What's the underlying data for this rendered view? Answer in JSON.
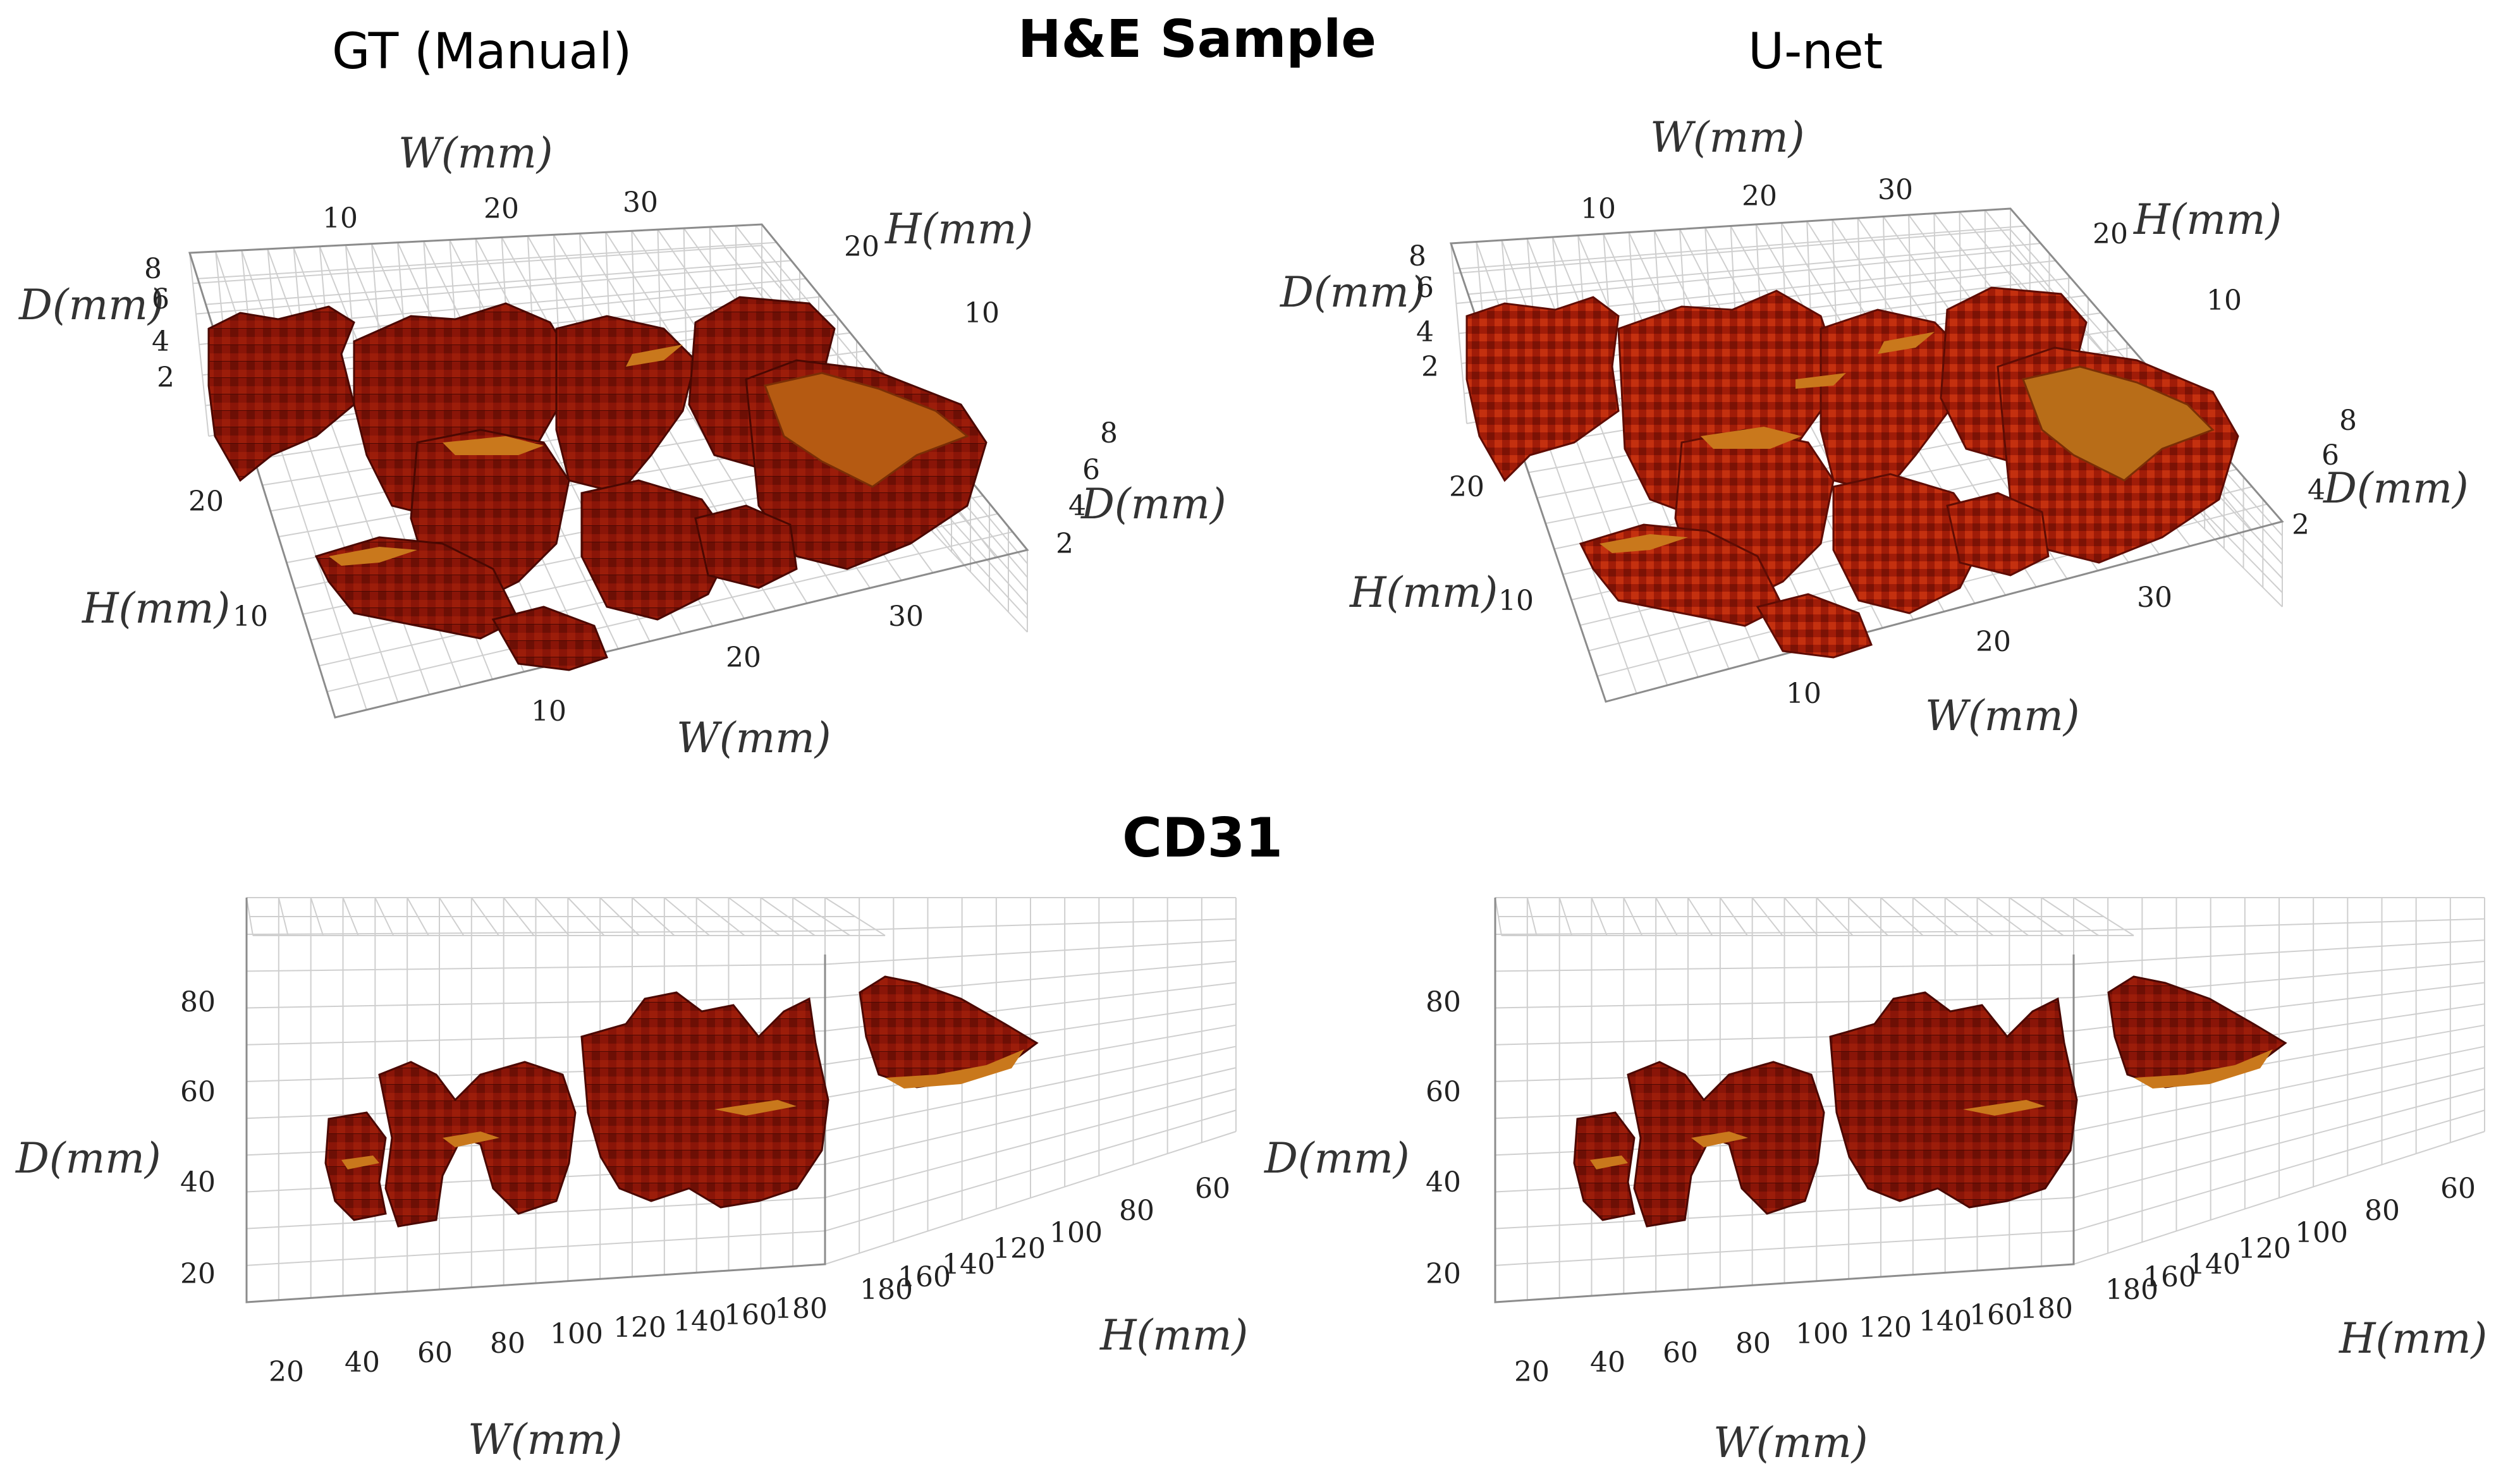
{
  "headers": {
    "he": "H&E Sample",
    "cd31": "CD31",
    "left": "GT (Manual)",
    "right": "U-net"
  },
  "colors": {
    "tissue": "#8a1508",
    "tissue_dark": "#5e0c04",
    "tissue_light": "#c23a12",
    "surface": "#c9781c",
    "grid": "#cfcfcf"
  },
  "chart_data": [
    {
      "id": "he-gt",
      "type": "3d-surface",
      "title": "GT (Manual)",
      "labels": {
        "w_top": "W(mm)",
        "h_top": "H(mm)",
        "d_left": "D(mm)",
        "d_right": "D(mm)",
        "h_left": "H(mm)",
        "w_bottom": "W(mm)"
      },
      "ticks": {
        "w_top": [
          "10",
          "20",
          "30"
        ],
        "h_top": [
          "20",
          "10"
        ],
        "d_left": [
          "8",
          "6",
          "4",
          "2"
        ],
        "d_right": [
          "8",
          "6",
          "4",
          "2"
        ],
        "h_left": [
          "20",
          "10"
        ],
        "w_bottom": [
          "10",
          "20",
          "30"
        ]
      }
    },
    {
      "id": "he-unet",
      "type": "3d-surface",
      "title": "U-net",
      "labels": {
        "w_top": "W(mm)",
        "h_top": "H(mm)",
        "d_left": "D(mm)",
        "d_right": "D(mm)",
        "h_left": "H(mm)",
        "w_bottom": "W(mm)"
      },
      "ticks": {
        "w_top": [
          "10",
          "20",
          "30"
        ],
        "h_top": [
          "20",
          "10"
        ],
        "d_left": [
          "8",
          "6",
          "4",
          "2"
        ],
        "d_right": [
          "8",
          "6",
          "4",
          "2"
        ],
        "h_left": [
          "20",
          "10"
        ],
        "w_bottom": [
          "10",
          "20",
          "30"
        ]
      }
    },
    {
      "id": "cd31-gt",
      "type": "3d-surface",
      "title": "CD31 GT (Manual)",
      "labels": {
        "d": "D(mm)",
        "w": "W(mm)",
        "h": "H(mm)"
      },
      "ticks": {
        "d": [
          "80",
          "60",
          "40",
          "20"
        ],
        "w": [
          "20",
          "40",
          "60",
          "80",
          "100",
          "120",
          "140",
          "160",
          "180"
        ],
        "h": [
          "180",
          "160",
          "140",
          "120",
          "100",
          "80",
          "60"
        ]
      }
    },
    {
      "id": "cd31-unet",
      "type": "3d-surface",
      "title": "CD31 U-net",
      "labels": {
        "d": "D(mm)",
        "w": "W(mm)",
        "h": "H(mm)"
      },
      "ticks": {
        "d": [
          "80",
          "60",
          "40",
          "20"
        ],
        "w": [
          "20",
          "40",
          "60",
          "80",
          "100",
          "120",
          "140",
          "160",
          "180"
        ],
        "h": [
          "180",
          "160",
          "140",
          "120",
          "100",
          "80",
          "60"
        ]
      }
    }
  ]
}
